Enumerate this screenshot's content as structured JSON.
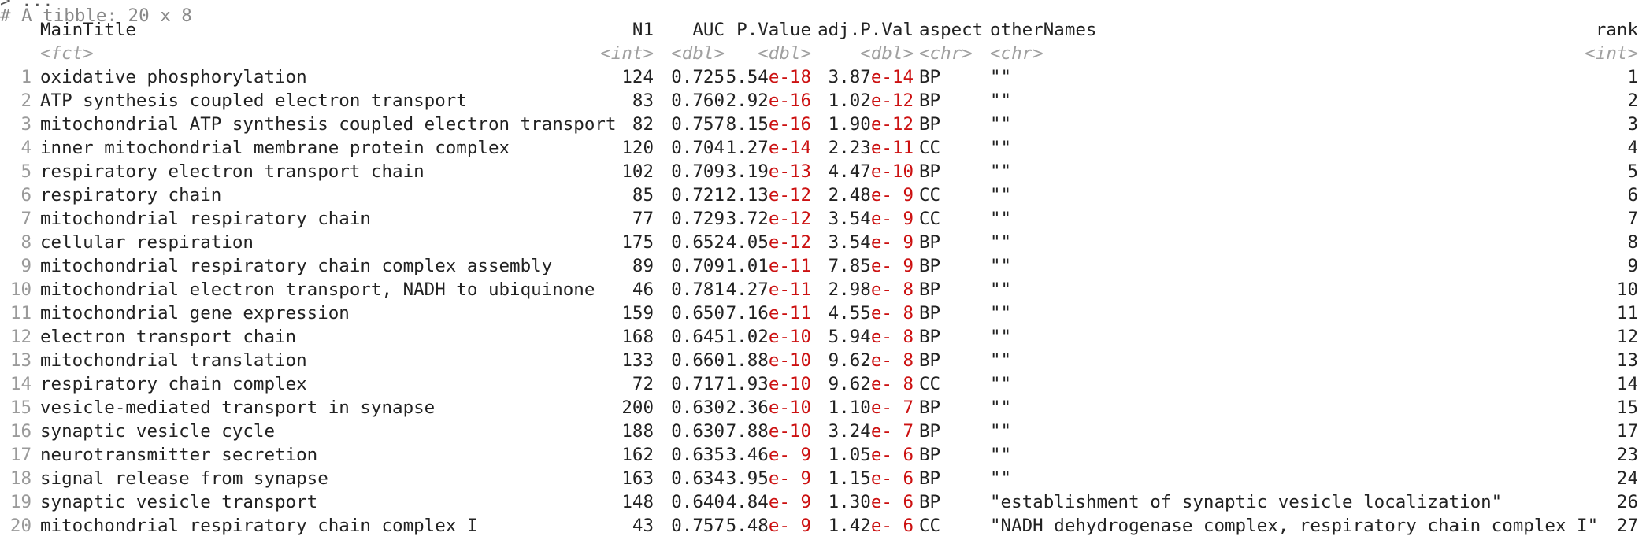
{
  "console": {
    "command_fragment": "> ...",
    "tibble_header": "# A tibble: 20 x 8"
  },
  "columns": [
    {
      "name": "MainTitle",
      "type": "<fct>"
    },
    {
      "name": "N1",
      "type": "<int>"
    },
    {
      "name": "AUC",
      "type": "<dbl>"
    },
    {
      "name": "P.Value",
      "type": "<dbl>"
    },
    {
      "name": "adj.P.Val",
      "type": "<dbl>"
    },
    {
      "name": "aspect",
      "type": "<chr>"
    },
    {
      "name": "otherNames",
      "type": "<chr>"
    },
    {
      "name": "rank",
      "type": "<int>"
    }
  ],
  "rows": [
    {
      "idx": "1",
      "title": "oxidative phosphorylation",
      "n1": "124",
      "auc": "0.725",
      "pm": "5.54",
      "pe": "e-18",
      "am": "3.87",
      "ae": "e-14",
      "aspect": "BP",
      "other": "\"\"",
      "rank": "1"
    },
    {
      "idx": "2",
      "title": "ATP synthesis coupled electron transport",
      "n1": "83",
      "auc": "0.760",
      "pm": "2.92",
      "pe": "e-16",
      "am": "1.02",
      "ae": "e-12",
      "aspect": "BP",
      "other": "\"\"",
      "rank": "2"
    },
    {
      "idx": "3",
      "title": "mitochondrial ATP synthesis coupled electron transport",
      "n1": "82",
      "auc": "0.757",
      "pm": "8.15",
      "pe": "e-16",
      "am": "1.90",
      "ae": "e-12",
      "aspect": "BP",
      "other": "\"\"",
      "rank": "3"
    },
    {
      "idx": "4",
      "title": "inner mitochondrial membrane protein complex",
      "n1": "120",
      "auc": "0.704",
      "pm": "1.27",
      "pe": "e-14",
      "am": "2.23",
      "ae": "e-11",
      "aspect": "CC",
      "other": "\"\"",
      "rank": "4"
    },
    {
      "idx": "5",
      "title": "respiratory electron transport chain",
      "n1": "102",
      "auc": "0.709",
      "pm": "3.19",
      "pe": "e-13",
      "am": "4.47",
      "ae": "e-10",
      "aspect": "BP",
      "other": "\"\"",
      "rank": "5"
    },
    {
      "idx": "6",
      "title": "respiratory chain",
      "n1": "85",
      "auc": "0.721",
      "pm": "2.13",
      "pe": "e-12",
      "am": "2.48",
      "ae": "e- 9",
      "aspect": "CC",
      "other": "\"\"",
      "rank": "6"
    },
    {
      "idx": "7",
      "title": "mitochondrial respiratory chain",
      "n1": "77",
      "auc": "0.729",
      "pm": "3.72",
      "pe": "e-12",
      "am": "3.54",
      "ae": "e- 9",
      "aspect": "CC",
      "other": "\"\"",
      "rank": "7"
    },
    {
      "idx": "8",
      "title": "cellular respiration",
      "n1": "175",
      "auc": "0.652",
      "pm": "4.05",
      "pe": "e-12",
      "am": "3.54",
      "ae": "e- 9",
      "aspect": "BP",
      "other": "\"\"",
      "rank": "8"
    },
    {
      "idx": "9",
      "title": "mitochondrial respiratory chain complex assembly",
      "n1": "89",
      "auc": "0.709",
      "pm": "1.01",
      "pe": "e-11",
      "am": "7.85",
      "ae": "e- 9",
      "aspect": "BP",
      "other": "\"\"",
      "rank": "9"
    },
    {
      "idx": "10",
      "title": "mitochondrial electron transport, NADH to ubiquinone",
      "n1": "46",
      "auc": "0.781",
      "pm": "4.27",
      "pe": "e-11",
      "am": "2.98",
      "ae": "e- 8",
      "aspect": "BP",
      "other": "\"\"",
      "rank": "10"
    },
    {
      "idx": "11",
      "title": "mitochondrial gene expression",
      "n1": "159",
      "auc": "0.650",
      "pm": "7.16",
      "pe": "e-11",
      "am": "4.55",
      "ae": "e- 8",
      "aspect": "BP",
      "other": "\"\"",
      "rank": "11"
    },
    {
      "idx": "12",
      "title": "electron transport chain",
      "n1": "168",
      "auc": "0.645",
      "pm": "1.02",
      "pe": "e-10",
      "am": "5.94",
      "ae": "e- 8",
      "aspect": "BP",
      "other": "\"\"",
      "rank": "12"
    },
    {
      "idx": "13",
      "title": "mitochondrial translation",
      "n1": "133",
      "auc": "0.660",
      "pm": "1.88",
      "pe": "e-10",
      "am": "9.62",
      "ae": "e- 8",
      "aspect": "BP",
      "other": "\"\"",
      "rank": "13"
    },
    {
      "idx": "14",
      "title": "respiratory chain complex",
      "n1": "72",
      "auc": "0.717",
      "pm": "1.93",
      "pe": "e-10",
      "am": "9.62",
      "ae": "e- 8",
      "aspect": "CC",
      "other": "\"\"",
      "rank": "14"
    },
    {
      "idx": "15",
      "title": "vesicle-mediated transport in synapse",
      "n1": "200",
      "auc": "0.630",
      "pm": "2.36",
      "pe": "e-10",
      "am": "1.10",
      "ae": "e- 7",
      "aspect": "BP",
      "other": "\"\"",
      "rank": "15"
    },
    {
      "idx": "16",
      "title": "synaptic vesicle cycle",
      "n1": "188",
      "auc": "0.630",
      "pm": "7.88",
      "pe": "e-10",
      "am": "3.24",
      "ae": "e- 7",
      "aspect": "BP",
      "other": "\"\"",
      "rank": "17"
    },
    {
      "idx": "17",
      "title": "neurotransmitter secretion",
      "n1": "162",
      "auc": "0.635",
      "pm": "3.46",
      "pe": "e- 9",
      "am": "1.05",
      "ae": "e- 6",
      "aspect": "BP",
      "other": "\"\"",
      "rank": "23"
    },
    {
      "idx": "18",
      "title": "signal release from synapse",
      "n1": "163",
      "auc": "0.634",
      "pm": "3.95",
      "pe": "e- 9",
      "am": "1.15",
      "ae": "e- 6",
      "aspect": "BP",
      "other": "\"\"",
      "rank": "24"
    },
    {
      "idx": "19",
      "title": "synaptic vesicle transport",
      "n1": "148",
      "auc": "0.640",
      "pm": "4.84",
      "pe": "e- 9",
      "am": "1.30",
      "ae": "e- 6",
      "aspect": "BP",
      "other": "\"establishment of synaptic vesicle localization\"",
      "rank": "26"
    },
    {
      "idx": "20",
      "title": "mitochondrial respiratory chain complex I",
      "n1": "43",
      "auc": "0.757",
      "pm": "5.48",
      "pe": "e- 9",
      "am": "1.42",
      "ae": "e- 6",
      "aspect": "CC",
      "other": "\"NADH dehydrogenase complex, respiratory chain complex I\"",
      "rank": "27"
    }
  ],
  "colors": {
    "exponent": "#cc1111",
    "type_hint": "#a0a0a0",
    "row_index": "#9a9a9a",
    "text": "#222222"
  }
}
